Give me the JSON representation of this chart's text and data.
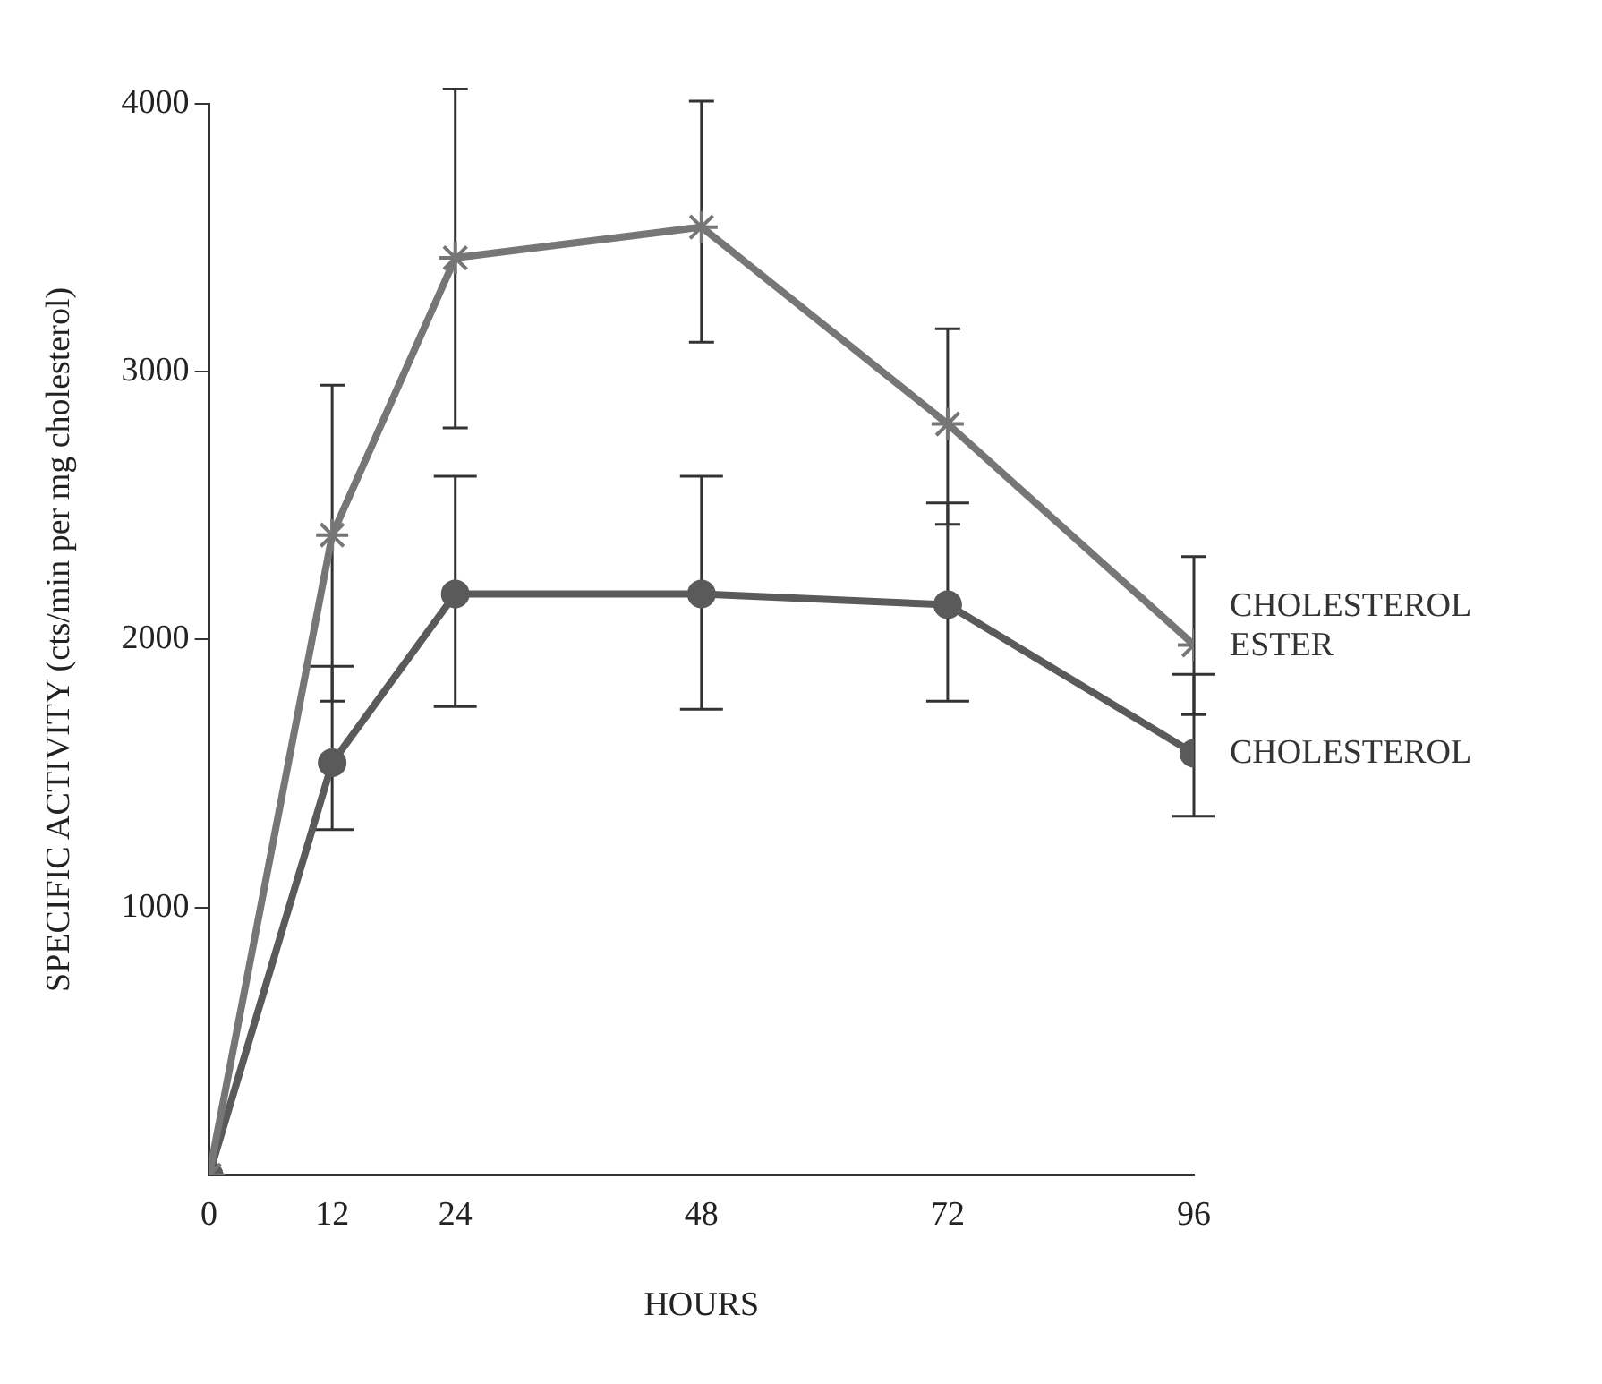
{
  "chart_data": {
    "type": "line",
    "xlabel": "HOURS",
    "ylabel": "SPECIFIC ACTIVITY (cts/min per mg cholesterol)",
    "x": [
      0,
      12,
      24,
      48,
      72,
      96
    ],
    "series": [
      {
        "name": "CHOLESTEROL ESTER",
        "color": "#767676",
        "marker": "cross",
        "values": [
          0,
          2390,
          3425,
          3540,
          2805,
          1980
        ],
        "errors": [
          null,
          [
            1770,
            2950
          ],
          [
            2790,
            4055
          ],
          [
            3110,
            4010
          ],
          [
            2430,
            3160
          ],
          [
            1720,
            2310
          ]
        ]
      },
      {
        "name": "CHOLESTEROL",
        "color": "#5a5a5a",
        "marker": "circle",
        "values": [
          0,
          1540,
          2170,
          2170,
          2130,
          1575
        ],
        "errors": [
          null,
          [
            1290,
            1900
          ],
          [
            1750,
            2610
          ],
          [
            1740,
            2610
          ],
          [
            1770,
            2510
          ],
          [
            1340,
            1870
          ]
        ]
      }
    ],
    "xlim": [
      0,
      96
    ],
    "xticks": [
      0,
      12,
      24,
      48,
      72,
      96
    ],
    "ylim": [
      0,
      4000
    ],
    "yticks": [
      1000,
      2000,
      3000,
      4000
    ],
    "grid": false,
    "legend": false,
    "line_style": "solid"
  }
}
